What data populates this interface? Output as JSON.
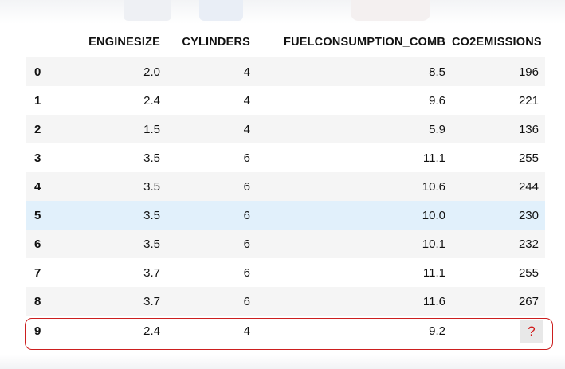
{
  "table": {
    "columns": [
      "",
      "ENGINESIZE",
      "CYLINDERS",
      "FUELCONSUMPTION_COMB",
      "CO2EMISSIONS"
    ],
    "rows": [
      {
        "index": "0",
        "enginesize": "2.0",
        "cylinders": "4",
        "fuel": "8.5",
        "co2": "196"
      },
      {
        "index": "1",
        "enginesize": "2.4",
        "cylinders": "4",
        "fuel": "9.6",
        "co2": "221"
      },
      {
        "index": "2",
        "enginesize": "1.5",
        "cylinders": "4",
        "fuel": "5.9",
        "co2": "136"
      },
      {
        "index": "3",
        "enginesize": "3.5",
        "cylinders": "6",
        "fuel": "11.1",
        "co2": "255"
      },
      {
        "index": "4",
        "enginesize": "3.5",
        "cylinders": "6",
        "fuel": "10.6",
        "co2": "244"
      },
      {
        "index": "5",
        "enginesize": "3.5",
        "cylinders": "6",
        "fuel": "10.0",
        "co2": "230"
      },
      {
        "index": "6",
        "enginesize": "3.5",
        "cylinders": "6",
        "fuel": "10.1",
        "co2": "232"
      },
      {
        "index": "7",
        "enginesize": "3.7",
        "cylinders": "6",
        "fuel": "11.1",
        "co2": "255"
      },
      {
        "index": "8",
        "enginesize": "3.7",
        "cylinders": "6",
        "fuel": "11.6",
        "co2": "267"
      },
      {
        "index": "9",
        "enginesize": "2.4",
        "cylinders": "4",
        "fuel": "9.2",
        "co2": "?"
      }
    ],
    "hovered_row": "5",
    "highlighted_row": "9"
  },
  "colors": {
    "highlight_border": "#cc1f1f",
    "question_mark": "#d11a1a",
    "hover_row": "#e1f0fb",
    "stripe": "#f5f5f5"
  }
}
